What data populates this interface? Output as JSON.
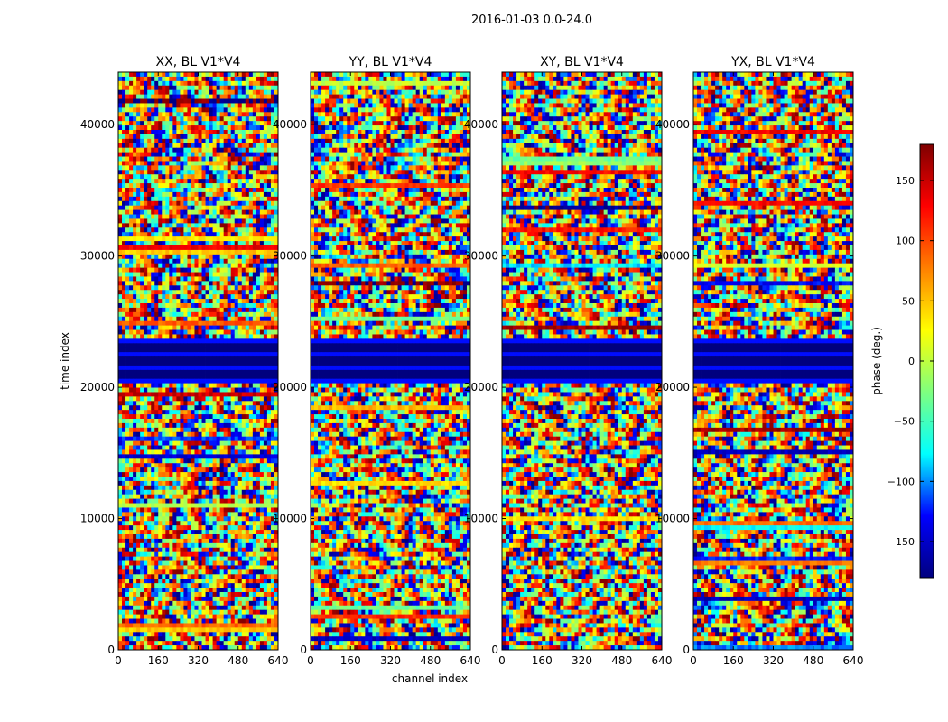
{
  "figure": {
    "suptitle": "2016-01-03 0.0-24.0",
    "xlabel": "channel index",
    "ylabel": "time index"
  },
  "colorbar": {
    "label": "phase (deg.)",
    "ticks": [
      150,
      100,
      50,
      0,
      -50,
      -100,
      -150
    ],
    "tick_labels": [
      "150",
      "100",
      "50",
      "0",
      "−50",
      "−100",
      "−150"
    ],
    "range": [
      -180,
      180
    ],
    "colormap": "jet",
    "colors": [
      "#00007f",
      "#0000ff",
      "#00ffff",
      "#7fff7f",
      "#ffff00",
      "#ff7f00",
      "#ff0000",
      "#7f0000"
    ]
  },
  "chart_data": [
    {
      "type": "heatmap",
      "title": "XX, BL V1*V4",
      "xlim": [
        0,
        640
      ],
      "ylim": [
        0,
        44000
      ],
      "xticks": [
        0,
        160,
        320,
        480,
        640
      ],
      "yticks": [
        0,
        10000,
        20000,
        30000,
        40000
      ],
      "xtick_labels": [
        "0",
        "160",
        "320",
        "480",
        "640"
      ],
      "ytick_labels": [
        "0",
        "10000",
        "20000",
        "30000",
        "40000"
      ],
      "flagged_time_range": [
        20300,
        23700
      ]
    },
    {
      "type": "heatmap",
      "title": "YY, BL V1*V4",
      "xlim": [
        0,
        640
      ],
      "ylim": [
        0,
        44000
      ],
      "xticks": [
        0,
        160,
        320,
        480,
        640
      ],
      "yticks": [
        0,
        10000,
        20000,
        30000,
        40000
      ],
      "xtick_labels": [
        "0",
        "160",
        "320",
        "480",
        "640"
      ],
      "ytick_labels": [
        "0",
        "10000",
        "20000",
        "30000",
        "40000"
      ],
      "flagged_time_range": [
        20300,
        23700
      ]
    },
    {
      "type": "heatmap",
      "title": "XY, BL V1*V4",
      "xlim": [
        0,
        640
      ],
      "ylim": [
        0,
        44000
      ],
      "xticks": [
        0,
        160,
        320,
        480,
        640
      ],
      "yticks": [
        0,
        10000,
        20000,
        30000,
        40000
      ],
      "xtick_labels": [
        "0",
        "160",
        "320",
        "480",
        "640"
      ],
      "ytick_labels": [
        "0",
        "10000",
        "20000",
        "30000",
        "40000"
      ],
      "flagged_time_range": [
        20300,
        23700
      ]
    },
    {
      "type": "heatmap",
      "title": "YX, BL V1*V4",
      "xlim": [
        0,
        640
      ],
      "ylim": [
        0,
        44000
      ],
      "xticks": [
        0,
        160,
        320,
        480,
        640
      ],
      "yticks": [
        0,
        10000,
        20000,
        30000,
        40000
      ],
      "xtick_labels": [
        "0",
        "160",
        "320",
        "480",
        "640"
      ],
      "ytick_labels": [
        "0",
        "10000",
        "20000",
        "30000",
        "40000"
      ],
      "flagged_time_range": [
        20300,
        23700
      ]
    }
  ]
}
